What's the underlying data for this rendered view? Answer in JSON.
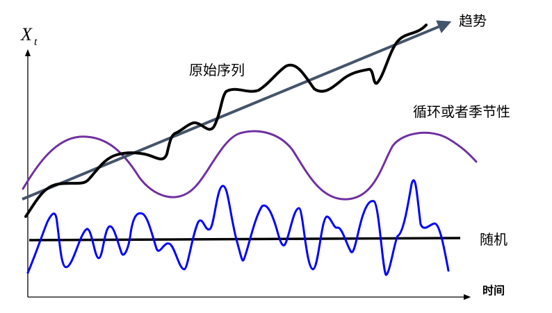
{
  "labels": {
    "y_axis_symbol": "X",
    "y_axis_subscript": "t",
    "trend": "趋势",
    "original_series": "原始序列",
    "cyclical_seasonal": "循环或者季节性",
    "random": "随机",
    "time": "时间"
  },
  "colors": {
    "axis": "#000000",
    "trend_arrow": "#44546a",
    "original_series": "#000000",
    "cyclical": "#7030a0",
    "random_series": "#0000ff",
    "random_baseline": "#000000"
  }
}
